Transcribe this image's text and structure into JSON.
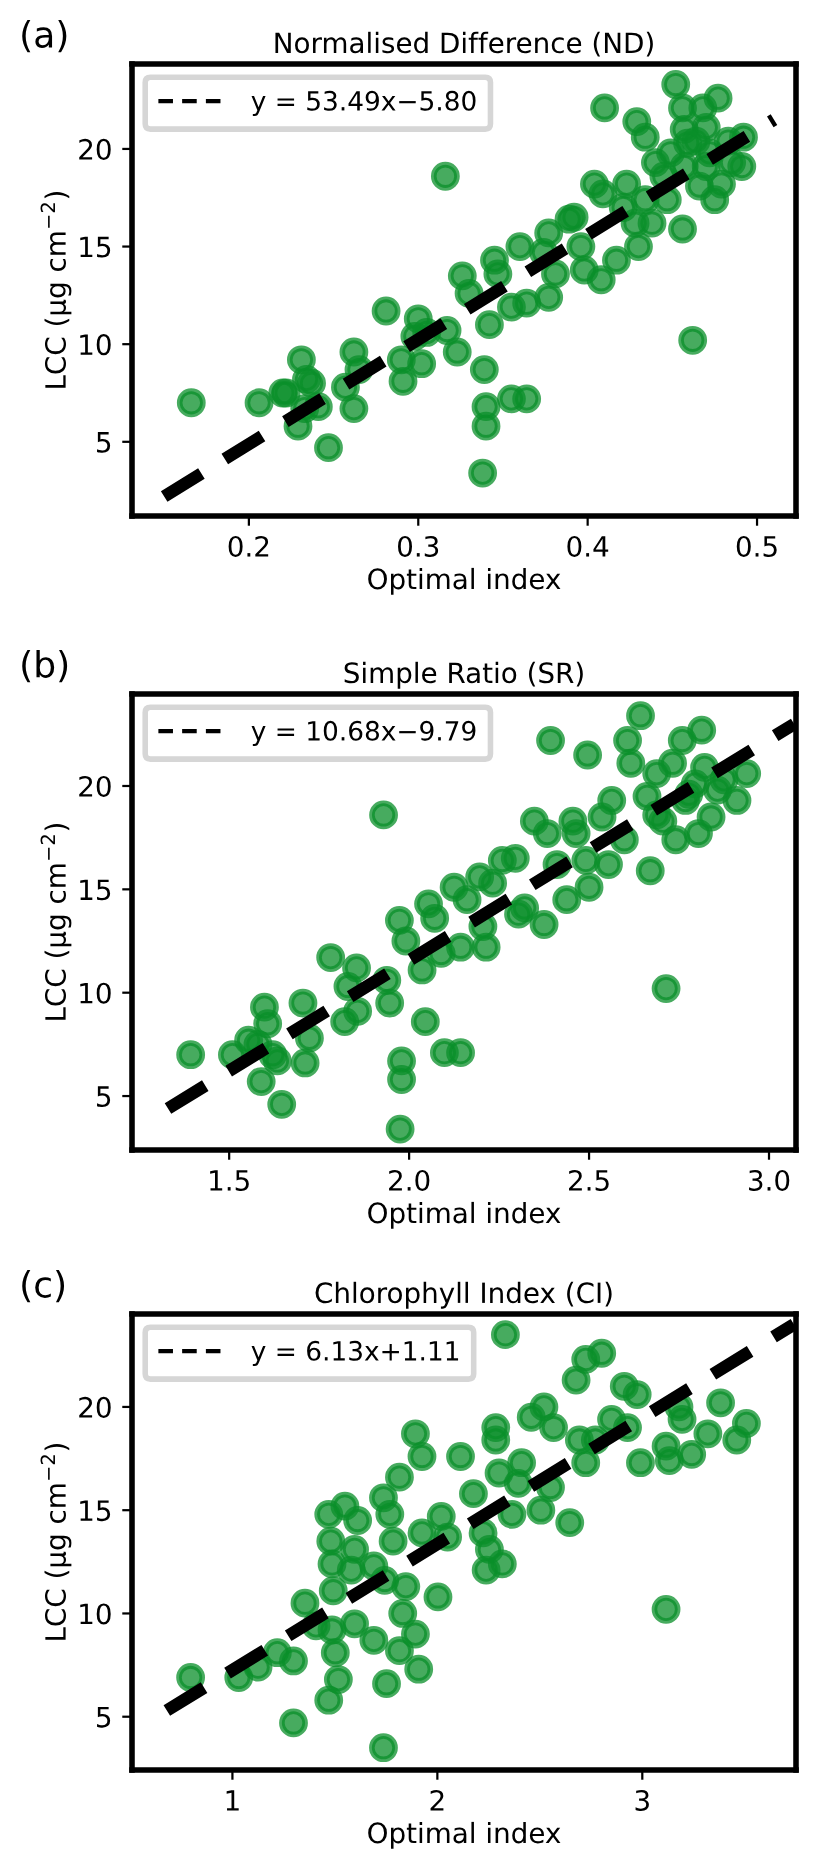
{
  "chart_data": [
    {
      "type": "scatter",
      "title": "Normalised Difference (ND)",
      "xlabel": "Optimal index",
      "ylabel": "LCC (μg cm$^{−2}$)",
      "annotations": [
        "(a)"
      ],
      "xlim": [
        0.131,
        0.523
      ],
      "ylim": [
        1.2,
        24.35
      ],
      "xticks": [
        0.2,
        0.3,
        0.4,
        0.5
      ],
      "yticks": [
        5,
        10,
        15,
        20
      ],
      "legend": "top left",
      "marker": "circle",
      "series": [
        {
          "color": "#0a8f2a",
          "x": [
            0.166,
            0.206,
            0.22,
            0.222,
            0.231,
            0.234,
            0.237,
            0.229,
            0.233,
            0.241,
            0.247,
            0.262,
            0.265,
            0.257,
            0.262,
            0.281,
            0.29,
            0.291,
            0.3,
            0.302,
            0.298,
            0.305,
            0.316,
            0.317,
            0.323,
            0.326,
            0.33,
            0.339,
            0.342,
            0.345,
            0.34,
            0.34,
            0.338,
            0.355,
            0.364,
            0.347,
            0.355,
            0.36,
            0.364,
            0.374,
            0.377,
            0.377,
            0.381,
            0.389,
            0.392,
            0.396,
            0.398,
            0.408,
            0.404,
            0.409,
            0.41,
            0.417,
            0.421,
            0.423,
            0.428,
            0.429,
            0.43,
            0.434,
            0.438,
            0.44,
            0.445,
            0.447,
            0.449,
            0.452,
            0.456,
            0.456,
            0.457,
            0.457,
            0.462,
            0.464,
            0.466,
            0.468,
            0.47,
            0.472,
            0.475,
            0.477,
            0.479,
            0.483,
            0.485,
            0.491,
            0.492,
            0.434,
            0.459,
            0.47
          ],
          "values": [
            7.0,
            7.0,
            7.5,
            7.5,
            9.2,
            8.2,
            8.0,
            5.8,
            6.7,
            6.8,
            4.7,
            9.6,
            8.7,
            7.8,
            6.7,
            11.7,
            9.2,
            8.1,
            11.3,
            9.0,
            10.4,
            10.6,
            18.6,
            10.7,
            9.6,
            13.5,
            12.6,
            8.7,
            11.0,
            14.3,
            6.8,
            5.8,
            3.4,
            7.2,
            7.2,
            13.6,
            11.9,
            15.0,
            12.1,
            14.7,
            15.7,
            12.4,
            13.6,
            16.4,
            16.5,
            15.0,
            13.8,
            13.3,
            18.2,
            17.7,
            22.1,
            14.3,
            17.0,
            18.2,
            16.2,
            21.4,
            15.0,
            17.4,
            16.2,
            19.3,
            18.6,
            17.4,
            19.8,
            23.3,
            22.1,
            15.9,
            21.0,
            19.1,
            10.2,
            20.4,
            18.1,
            22.1,
            21.1,
            19.8,
            17.4,
            22.6,
            18.2,
            20.4,
            19.3,
            19.1,
            20.6,
            20.6,
            20.3,
            19.1
          ]
        },
        {
          "type": "line",
          "name": "y = 53.49x−5.80",
          "color": "#000000",
          "line_style": "dashed",
          "marker": "none",
          "x": [
            0.15,
            0.51
          ],
          "values": [
            2.2,
            21.5
          ]
        }
      ]
    },
    {
      "type": "scatter",
      "title": "Simple Ratio (SR)",
      "xlabel": "Optimal index",
      "ylabel": "LCC (μg cm$^{−2}$)",
      "annotations": [
        "(b)"
      ],
      "xlim": [
        1.23,
        3.075
      ],
      "ylim": [
        2.39,
        24.45
      ],
      "xticks": [
        1.5,
        {
          "value": 2,
          "label": "2.0"
        },
        2.5,
        {
          "value": 3,
          "label": "3.0"
        }
      ],
      "yticks": [
        5,
        10,
        15,
        20
      ],
      "legend": "top left",
      "marker": "circle",
      "series": [
        {
          "color": "#0a8f2a",
          "x": [
            1.393,
            1.509,
            1.554,
            1.58,
            1.598,
            1.607,
            1.589,
            1.621,
            1.634,
            1.646,
            1.705,
            1.723,
            1.711,
            1.782,
            1.821,
            1.83,
            1.854,
            1.857,
            1.929,
            1.946,
            1.938,
            1.973,
            1.991,
            2.036,
            2.045,
            1.979,
            1.979,
            1.975,
            2.098,
            2.143,
            2.054,
            2.071,
            2.089,
            2.125,
            2.143,
            2.161,
            2.196,
            2.205,
            2.214,
            2.232,
            2.259,
            2.295,
            2.304,
            2.321,
            2.348,
            2.384,
            2.375,
            2.393,
            2.411,
            2.438,
            2.455,
            2.464,
            2.491,
            2.496,
            2.5,
            2.536,
            2.554,
            2.563,
            2.598,
            2.607,
            2.616,
            2.643,
            2.661,
            2.67,
            2.688,
            2.705,
            2.714,
            2.732,
            2.741,
            2.759,
            2.768,
            2.795,
            2.804,
            2.813,
            2.821,
            2.839,
            2.857,
            2.875,
            2.911,
            2.938,
            2.688,
            2.777
          ],
          "values": [
            7.0,
            7.0,
            7.7,
            7.5,
            9.3,
            8.5,
            5.7,
            7.0,
            6.7,
            4.6,
            9.5,
            7.8,
            6.6,
            11.7,
            8.6,
            10.3,
            11.2,
            9.1,
            18.6,
            9.5,
            10.6,
            13.5,
            12.5,
            11.1,
            8.6,
            6.7,
            5.8,
            3.4,
            7.1,
            7.1,
            14.3,
            13.6,
            11.9,
            15.1,
            12.2,
            14.5,
            15.6,
            13.2,
            12.2,
            15.3,
            16.4,
            16.5,
            13.8,
            14.1,
            18.3,
            17.7,
            13.3,
            22.2,
            16.2,
            14.5,
            18.3,
            17.7,
            16.4,
            21.5,
            15.1,
            18.5,
            16.2,
            19.3,
            17.4,
            22.2,
            21.1,
            23.4,
            19.5,
            15.9,
            20.6,
            18.3,
            10.2,
            21.1,
            17.4,
            22.2,
            19.3,
            20.1,
            17.7,
            22.7,
            20.9,
            18.5,
            19.8,
            20.3,
            19.3,
            20.6,
            18.6,
            19.6
          ]
        },
        {
          "type": "line",
          "name": "y = 10.68x−9.79",
          "color": "#000000",
          "line_style": "dashed",
          "marker": "none",
          "x": [
            1.33,
            3.07
          ],
          "values": [
            4.4,
            23.0
          ]
        }
      ]
    },
    {
      "type": "scatter",
      "title": "Chlorophyll Index (CI)",
      "xlabel": "Optimal index",
      "ylabel": "LCC (μg cm$^{−2}$)",
      "annotations": [
        "(c)"
      ],
      "xlim": [
        0.51,
        3.75
      ],
      "ylim": [
        2.42,
        24.5
      ],
      "xticks": [
        1,
        2,
        3
      ],
      "yticks": [
        5,
        10,
        15,
        20
      ],
      "legend": "top left",
      "marker": "circle",
      "series": [
        {
          "color": "#0a8f2a",
          "x": [
            0.796,
            1.031,
            1.125,
            1.219,
            1.298,
            1.298,
            1.354,
            1.408,
            1.47,
            1.48,
            1.486,
            1.492,
            1.486,
            1.502,
            1.517,
            1.47,
            1.549,
            1.58,
            1.596,
            1.596,
            1.611,
            1.69,
            1.69,
            1.737,
            1.743,
            1.752,
            1.737,
            1.768,
            1.784,
            1.815,
            1.846,
            1.831,
            1.815,
            1.893,
            1.925,
            1.893,
            1.909,
            1.925,
            2.003,
            2.019,
            2.05,
            2.113,
            2.176,
            2.223,
            2.238,
            2.254,
            2.285,
            2.285,
            2.301,
            2.317,
            2.332,
            2.364,
            2.411,
            2.395,
            2.458,
            2.505,
            2.52,
            2.552,
            2.567,
            2.646,
            2.677,
            2.693,
            2.724,
            2.724,
            2.802,
            2.771,
            2.85,
            2.912,
            2.928,
            2.975,
            2.991,
            3.116,
            3.116,
            3.132,
            3.179,
            3.194,
            3.241,
            3.32,
            3.382,
            3.461,
            3.508
          ],
          "values": [
            6.9,
            6.9,
            7.4,
            8.1,
            7.7,
            4.7,
            10.5,
            9.4,
            14.8,
            13.5,
            12.4,
            11.1,
            9.2,
            8.1,
            6.8,
            5.8,
            15.2,
            12.1,
            13.1,
            9.5,
            14.5,
            12.3,
            8.7,
            15.6,
            11.6,
            6.6,
            3.5,
            14.8,
            13.5,
            16.6,
            11.3,
            10.0,
            8.2,
            18.7,
            17.6,
            9.0,
            7.3,
            13.9,
            10.8,
            14.7,
            13.7,
            17.6,
            15.8,
            13.9,
            12.1,
            13.1,
            18.4,
            19.0,
            16.8,
            12.4,
            23.5,
            14.8,
            17.3,
            16.3,
            19.5,
            15.0,
            20.0,
            16.1,
            19.0,
            14.4,
            21.3,
            18.4,
            22.3,
            17.3,
            22.6,
            18.4,
            19.4,
            21.0,
            19.0,
            20.6,
            17.3,
            10.2,
            18.1,
            17.4,
            20.0,
            19.4,
            17.7,
            18.7,
            20.2,
            18.4,
            19.2
          ]
        },
        {
          "type": "line",
          "name": "y = 6.13x+1.11",
          "color": "#000000",
          "line_style": "dashed",
          "marker": "none",
          "x": [
            0.68,
            3.74
          ],
          "values": [
            5.3,
            24.0
          ]
        }
      ]
    }
  ]
}
